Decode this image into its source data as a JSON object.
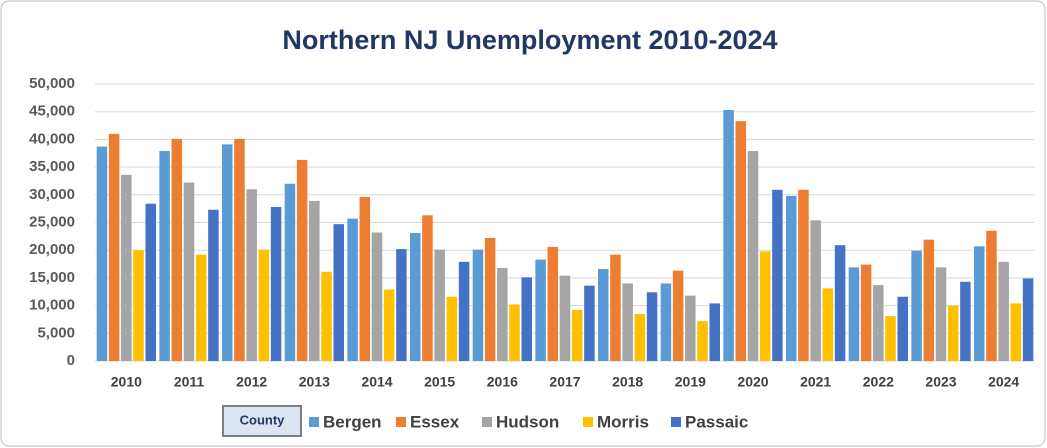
{
  "chart_data": {
    "type": "bar",
    "title": "Northern NJ Unemployment  2010-2024",
    "categories": [
      "2010",
      "2011",
      "2012",
      "2013",
      "2014",
      "2015",
      "2016",
      "2017",
      "2018",
      "2019",
      "2020",
      "2021",
      "2022",
      "2023",
      "2024"
    ],
    "legend_title": "County",
    "series": [
      {
        "name": "Bergen",
        "color": "#5b9bd5",
        "values": [
          38700,
          37900,
          39100,
          32000,
          25700,
          23100,
          20100,
          18300,
          16600,
          14000,
          45300,
          29800,
          16900,
          19900,
          20700
        ]
      },
      {
        "name": "Essex",
        "color": "#ed7d31",
        "values": [
          41000,
          40100,
          40100,
          36300,
          29600,
          26300,
          22200,
          20600,
          19200,
          16300,
          43300,
          30900,
          17400,
          21900,
          23500
        ]
      },
      {
        "name": "Hudson",
        "color": "#a5a5a5",
        "values": [
          33600,
          32200,
          31000,
          28900,
          23200,
          20100,
          16800,
          15400,
          14000,
          11800,
          37900,
          25400,
          13700,
          16900,
          17900
        ]
      },
      {
        "name": "Morris",
        "color": "#ffc000",
        "values": [
          20000,
          19200,
          20100,
          16100,
          12900,
          11600,
          10200,
          9200,
          8500,
          7200,
          19800,
          13100,
          8100,
          10000,
          10400
        ]
      },
      {
        "name": "Passaic",
        "color": "#4472c4",
        "values": [
          28400,
          27300,
          27800,
          24700,
          20200,
          17900,
          15100,
          13600,
          12400,
          10400,
          30900,
          20900,
          11600,
          14300,
          14900
        ]
      }
    ],
    "ylim": [
      0,
      50000
    ],
    "yticks": [
      0,
      {
        "value": 5000,
        "label": "5,000"
      },
      {
        "value": 10000,
        "label": "10,000"
      },
      {
        "value": 15000,
        "label": "15,000"
      },
      {
        "value": 20000,
        "label": "20,000"
      },
      {
        "value": 25000,
        "label": "25,000"
      },
      {
        "value": 30000,
        "label": "30,000"
      },
      {
        "value": 35000,
        "label": "35,000"
      },
      {
        "value": 40000,
        "label": "40,000"
      },
      {
        "value": 45000,
        "label": "45,000"
      },
      {
        "value": 50000,
        "label": "50,000"
      }
    ],
    "grid": true
  }
}
